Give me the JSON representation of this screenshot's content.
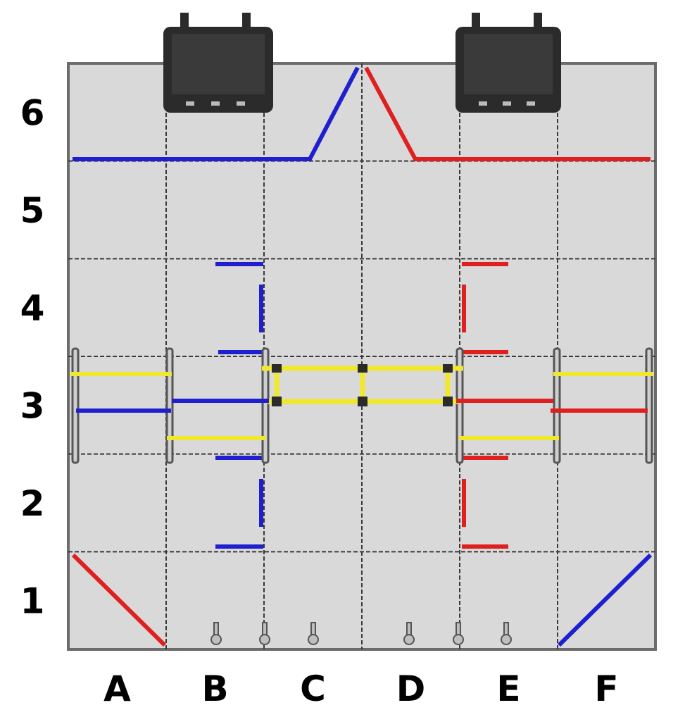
{
  "rows": [
    "6",
    "5",
    "4",
    "3",
    "2",
    "1"
  ],
  "columns": [
    "A",
    "B",
    "C",
    "D",
    "E",
    "F"
  ],
  "colors": {
    "tile": "#d9d9d9",
    "tile_border": "#3a3a3a",
    "frame": "#6b6b6b",
    "blue": "#1f1fcf",
    "red": "#e01f1f",
    "yellow": "#f0e82a",
    "goal": "#2b2b2b"
  },
  "field_elements": {
    "goals": [
      "goal-left",
      "goal-right"
    ],
    "blue_pieces": [
      "blue-top-line",
      "blue-b4-lines",
      "blue-b2-lines",
      "blue-a3-bar",
      "blue-b3-bar",
      "blue-f1-diagonal"
    ],
    "red_pieces": [
      "red-top-line",
      "red-e4-lines",
      "red-e2-lines",
      "red-f3-bar",
      "red-e3-bar",
      "red-a1-diagonal"
    ],
    "yellow_pieces": [
      "yellow-center-frame",
      "yellow-left-bars",
      "yellow-right-bars"
    ]
  }
}
